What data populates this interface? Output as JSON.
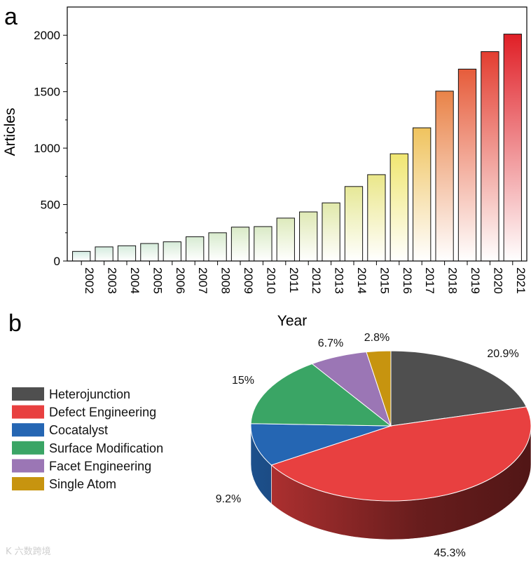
{
  "panels": {
    "a": "a",
    "b": "b"
  },
  "watermark": "K 六数跨境",
  "chart_data": [
    {
      "type": "bar",
      "panel": "a",
      "title": "",
      "xlabel": "Year",
      "ylabel": "Articles",
      "categories": [
        "2002",
        "2003",
        "2004",
        "2005",
        "2006",
        "2007",
        "2008",
        "2009",
        "2010",
        "2011",
        "2012",
        "2013",
        "2014",
        "2015",
        "2016",
        "2017",
        "2018",
        "2019",
        "2020",
        "2021"
      ],
      "values": [
        85,
        125,
        135,
        155,
        170,
        215,
        250,
        300,
        305,
        380,
        435,
        515,
        660,
        765,
        950,
        1180,
        1505,
        1700,
        1855,
        2010
      ],
      "ylim": [
        0,
        2250
      ],
      "yticks": [
        0,
        500,
        1000,
        1500,
        2000
      ],
      "gradient": [
        "#d0ecee",
        "#f2e66a",
        "#e01f26"
      ]
    },
    {
      "type": "pie",
      "panel": "b",
      "style": "3d",
      "series": [
        {
          "name": "Heterojunction",
          "value": 20.9,
          "label": "20.9%",
          "color": "#4f4f4f"
        },
        {
          "name": "Defect Engineering",
          "value": 45.3,
          "label": "45.3%",
          "color": "#e84040"
        },
        {
          "name": "Cocatalyst",
          "value": 9.2,
          "label": "9.2%",
          "color": "#2566b3"
        },
        {
          "name": "Surface Modification",
          "value": 15,
          "label": "15%",
          "color": "#3aa565"
        },
        {
          "name": "Facet Engineering",
          "value": 6.7,
          "label": "6.7%",
          "color": "#9b76b5"
        },
        {
          "name": "Single Atom",
          "value": 2.8,
          "label": "2.8%",
          "color": "#c7940f"
        }
      ]
    }
  ]
}
